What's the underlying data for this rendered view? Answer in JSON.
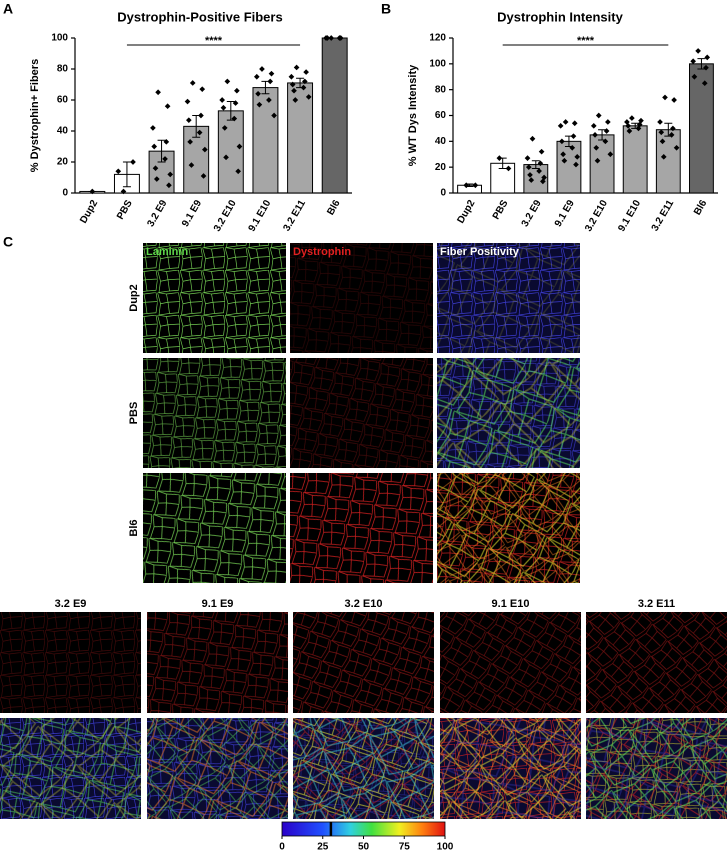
{
  "chart_data": [
    {
      "type": "bar",
      "panel": "A",
      "title": "Dystrophin-Positive Fibers",
      "y_label": "% Dystrophin+ Fibers",
      "categories": [
        "Dup2",
        "PBS",
        "3.2 E9",
        "9.1 E9",
        "3.2 E10",
        "9.1 E10",
        "3.2 E11",
        "Bl6"
      ],
      "values": [
        1,
        12,
        27,
        43,
        53,
        68,
        71,
        100
      ],
      "errors": [
        0,
        8,
        7,
        7,
        6,
        4,
        3,
        0
      ],
      "points": [
        [
          1
        ],
        [
          1,
          20,
          14
        ],
        [
          65,
          56,
          42,
          33,
          30,
          22,
          16,
          12,
          9,
          5
        ],
        [
          71,
          67,
          59,
          50,
          47,
          39,
          33,
          28,
          18,
          11
        ],
        [
          72,
          66,
          60,
          58,
          55,
          48,
          42,
          30,
          23,
          14
        ],
        [
          80,
          77,
          75,
          72,
          64,
          60,
          57,
          50
        ],
        [
          81,
          78,
          75,
          72,
          70,
          68,
          66,
          62,
          60
        ],
        [
          100,
          100,
          100,
          100,
          100
        ]
      ],
      "colors": [
        "#ffffff",
        "#ffffff",
        "#a6a6a6",
        "#a6a6a6",
        "#a6a6a6",
        "#a6a6a6",
        "#a6a6a6",
        "#666666"
      ],
      "ylim": [
        0,
        100
      ],
      "yticks": [
        0,
        20,
        40,
        60,
        80,
        100
      ],
      "annotation": "****"
    },
    {
      "type": "bar",
      "panel": "B",
      "title": "Dystrophin Intensity",
      "y_label": "% WT Dys Intensity",
      "categories": [
        "Dup2",
        "PBS",
        "3.2 E9",
        "9.1 E9",
        "3.2 E10",
        "9.1 E10",
        "3.2 E11",
        "Bl6"
      ],
      "values": [
        6,
        23,
        22,
        40,
        45,
        52,
        49,
        100
      ],
      "errors": [
        1,
        4,
        3,
        4,
        4,
        2,
        5,
        4
      ],
      "points": [
        [
          6,
          6
        ],
        [
          27,
          19
        ],
        [
          42,
          32,
          27,
          23,
          20,
          17,
          14,
          12,
          10,
          9
        ],
        [
          55,
          54,
          52,
          44,
          40,
          35,
          30,
          28,
          25,
          22
        ],
        [
          60,
          55,
          52,
          48,
          45,
          40,
          35,
          30,
          25
        ],
        [
          58,
          56,
          55,
          53,
          52,
          50,
          48
        ],
        [
          74,
          72,
          55,
          50,
          47,
          45,
          40,
          35,
          28
        ],
        [
          110,
          105,
          102,
          97,
          90,
          85
        ]
      ],
      "colors": [
        "#ffffff",
        "#ffffff",
        "#a6a6a6",
        "#a6a6a6",
        "#a6a6a6",
        "#a6a6a6",
        "#a6a6a6",
        "#666666"
      ],
      "ylim": [
        0,
        120
      ],
      "yticks": [
        0,
        20,
        40,
        60,
        80,
        100,
        120
      ],
      "annotation": "****"
    }
  ],
  "panel_c": {
    "label": "C",
    "channels": [
      "Laminin",
      "Dystrophin",
      "Fiber Positivity"
    ],
    "rows": [
      "Dup2",
      "PBS",
      "Bl6"
    ],
    "columns": [
      "3.2 E9",
      "9.1 E9",
      "3.2 E10",
      "9.1 E10",
      "3.2 E11"
    ],
    "colorbar": {
      "lim": [
        0,
        100
      ],
      "ticks": [
        0,
        25,
        50,
        75,
        100
      ],
      "marker": 30
    }
  }
}
